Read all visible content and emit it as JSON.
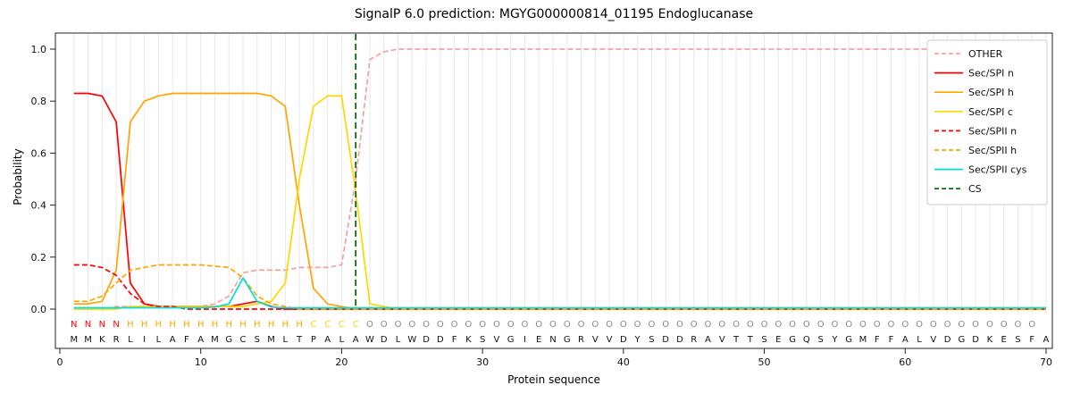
{
  "chart_data": {
    "type": "line",
    "title": "SignalP 6.0 prediction: MGYG000000814_01195 Endoglucanase",
    "xlabel": "Protein sequence",
    "ylabel": "Probability",
    "x_ticks": [
      0,
      10,
      20,
      30,
      40,
      50,
      60,
      70
    ],
    "y_ticks": [
      0.0,
      0.2,
      0.4,
      0.6,
      0.8,
      1.0
    ],
    "xlim": [
      0,
      71
    ],
    "ylim": [
      0,
      1.05
    ],
    "grid": "vertical-per-residue",
    "legend_position": "upper right",
    "sequence": "MMKRLILAFAMGCSMLTPALAWDLWDDFKSVGIENGRVVDYSDDRAVTTSEGQSYGMFFALVDGDKESFA",
    "regions": "NNNNHHHHHHHHHHHHHCCCCOOOOOOOOOOOOOOOOOOOOOOOOOOOOOOOOOOOOOOOOOOOOOOOO",
    "region_colors": {
      "N": "#ff0000",
      "H": "#ffa500",
      "C": "#ffd700",
      "O": "#888888"
    },
    "sequence_color": "#111111",
    "series": [
      {
        "name": "OTHER",
        "color": "#f2a2a2",
        "dash": "dashed",
        "values": [
          0,
          0,
          0,
          0.01,
          0.01,
          0.01,
          0.01,
          0.01,
          0.01,
          0.01,
          0.02,
          0.05,
          0.14,
          0.15,
          0.15,
          0.15,
          0.16,
          0.16,
          0.16,
          0.17,
          0.5,
          0.96,
          0.99,
          1,
          1,
          1,
          1,
          1,
          1,
          1,
          1,
          1,
          1,
          1,
          1,
          1,
          1,
          1,
          1,
          1,
          1,
          1,
          1,
          1,
          1,
          1,
          1,
          1,
          1,
          1,
          1,
          1,
          1,
          1,
          1,
          1,
          1,
          1,
          1,
          1,
          1,
          1,
          1,
          1,
          1,
          1,
          1,
          1,
          1,
          1
        ]
      },
      {
        "name": "Sec/SPI n",
        "color": "#ff0000",
        "dash": "solid",
        "values": [
          0.83,
          0.83,
          0.82,
          0.72,
          0.1,
          0.02,
          0.01,
          0.01,
          0.01,
          0.01,
          0.01,
          0.01,
          0.02,
          0.03,
          0.01,
          0,
          0,
          0,
          0,
          0,
          0,
          0,
          0,
          0,
          0,
          0,
          0,
          0,
          0,
          0,
          0,
          0,
          0,
          0,
          0,
          0,
          0,
          0,
          0,
          0,
          0,
          0,
          0,
          0,
          0,
          0,
          0,
          0,
          0,
          0,
          0,
          0,
          0,
          0,
          0,
          0,
          0,
          0,
          0,
          0,
          0,
          0,
          0,
          0,
          0,
          0,
          0,
          0,
          0,
          0
        ]
      },
      {
        "name": "Sec/SPI h",
        "color": "#ffa500",
        "dash": "solid",
        "values": [
          0.02,
          0.02,
          0.03,
          0.15,
          0.72,
          0.8,
          0.82,
          0.83,
          0.83,
          0.83,
          0.83,
          0.83,
          0.83,
          0.83,
          0.82,
          0.78,
          0.4,
          0.08,
          0.02,
          0.01,
          0,
          0,
          0,
          0,
          0,
          0,
          0,
          0,
          0,
          0,
          0,
          0,
          0,
          0,
          0,
          0,
          0,
          0,
          0,
          0,
          0,
          0,
          0,
          0,
          0,
          0,
          0,
          0,
          0,
          0,
          0,
          0,
          0,
          0,
          0,
          0,
          0,
          0,
          0,
          0,
          0,
          0,
          0,
          0,
          0,
          0,
          0,
          0,
          0,
          0
        ]
      },
      {
        "name": "Sec/SPI c",
        "color": "#ffd700",
        "dash": "solid",
        "values": [
          0,
          0,
          0,
          0,
          0.01,
          0.01,
          0.01,
          0.01,
          0.01,
          0.01,
          0.01,
          0.01,
          0.01,
          0.02,
          0.03,
          0.1,
          0.5,
          0.78,
          0.82,
          0.82,
          0.45,
          0.02,
          0.01,
          0,
          0,
          0,
          0,
          0,
          0,
          0,
          0,
          0,
          0,
          0,
          0,
          0,
          0,
          0,
          0,
          0,
          0,
          0,
          0,
          0,
          0,
          0,
          0,
          0,
          0,
          0,
          0,
          0,
          0,
          0,
          0,
          0,
          0,
          0,
          0,
          0,
          0,
          0,
          0,
          0,
          0,
          0,
          0,
          0,
          0,
          0
        ]
      },
      {
        "name": "Sec/SPII n",
        "color": "#ff0000",
        "dash": "dashed",
        "values": [
          0.17,
          0.17,
          0.16,
          0.13,
          0.06,
          0.02,
          0.01,
          0.01,
          0,
          0,
          0,
          0,
          0,
          0,
          0,
          0,
          0,
          0,
          0,
          0,
          0,
          0,
          0,
          0,
          0,
          0,
          0,
          0,
          0,
          0,
          0,
          0,
          0,
          0,
          0,
          0,
          0,
          0,
          0,
          0,
          0,
          0,
          0,
          0,
          0,
          0,
          0,
          0,
          0,
          0,
          0,
          0,
          0,
          0,
          0,
          0,
          0,
          0,
          0,
          0,
          0,
          0,
          0,
          0,
          0,
          0,
          0,
          0,
          0,
          0
        ]
      },
      {
        "name": "Sec/SPII h",
        "color": "#ffa500",
        "dash": "dashed",
        "values": [
          0.03,
          0.03,
          0.05,
          0.1,
          0.15,
          0.16,
          0.17,
          0.17,
          0.17,
          0.17,
          0.165,
          0.16,
          0.12,
          0.05,
          0.02,
          0.01,
          0,
          0,
          0,
          0,
          0,
          0,
          0,
          0,
          0,
          0,
          0,
          0,
          0,
          0,
          0,
          0,
          0,
          0,
          0,
          0,
          0,
          0,
          0,
          0,
          0,
          0,
          0,
          0,
          0,
          0,
          0,
          0,
          0,
          0,
          0,
          0,
          0,
          0,
          0,
          0,
          0,
          0,
          0,
          0,
          0,
          0,
          0,
          0,
          0,
          0,
          0,
          0,
          0,
          0
        ]
      },
      {
        "name": "Sec/SPII cys",
        "color": "#00dede",
        "dash": "solid",
        "values": [
          0.005,
          0.005,
          0.005,
          0.005,
          0.005,
          0.005,
          0.005,
          0.005,
          0.005,
          0.005,
          0.008,
          0.02,
          0.12,
          0.03,
          0.008,
          0.005,
          0.005,
          0.005,
          0.005,
          0.005,
          0.005,
          0.005,
          0.005,
          0.005,
          0.005,
          0.005,
          0.005,
          0.005,
          0.005,
          0.005,
          0.005,
          0.005,
          0.005,
          0.005,
          0.005,
          0.005,
          0.005,
          0.005,
          0.005,
          0.005,
          0.005,
          0.005,
          0.005,
          0.005,
          0.005,
          0.005,
          0.005,
          0.005,
          0.005,
          0.005,
          0.005,
          0.005,
          0.005,
          0.005,
          0.005,
          0.005,
          0.005,
          0.005,
          0.005,
          0.005,
          0.005,
          0.005,
          0.005,
          0.005,
          0.005,
          0.005,
          0.005,
          0.005,
          0.005,
          0.005
        ]
      }
    ],
    "cs_line": {
      "name": "CS",
      "position": 21,
      "color": "#006400",
      "dash": "dashed"
    }
  }
}
